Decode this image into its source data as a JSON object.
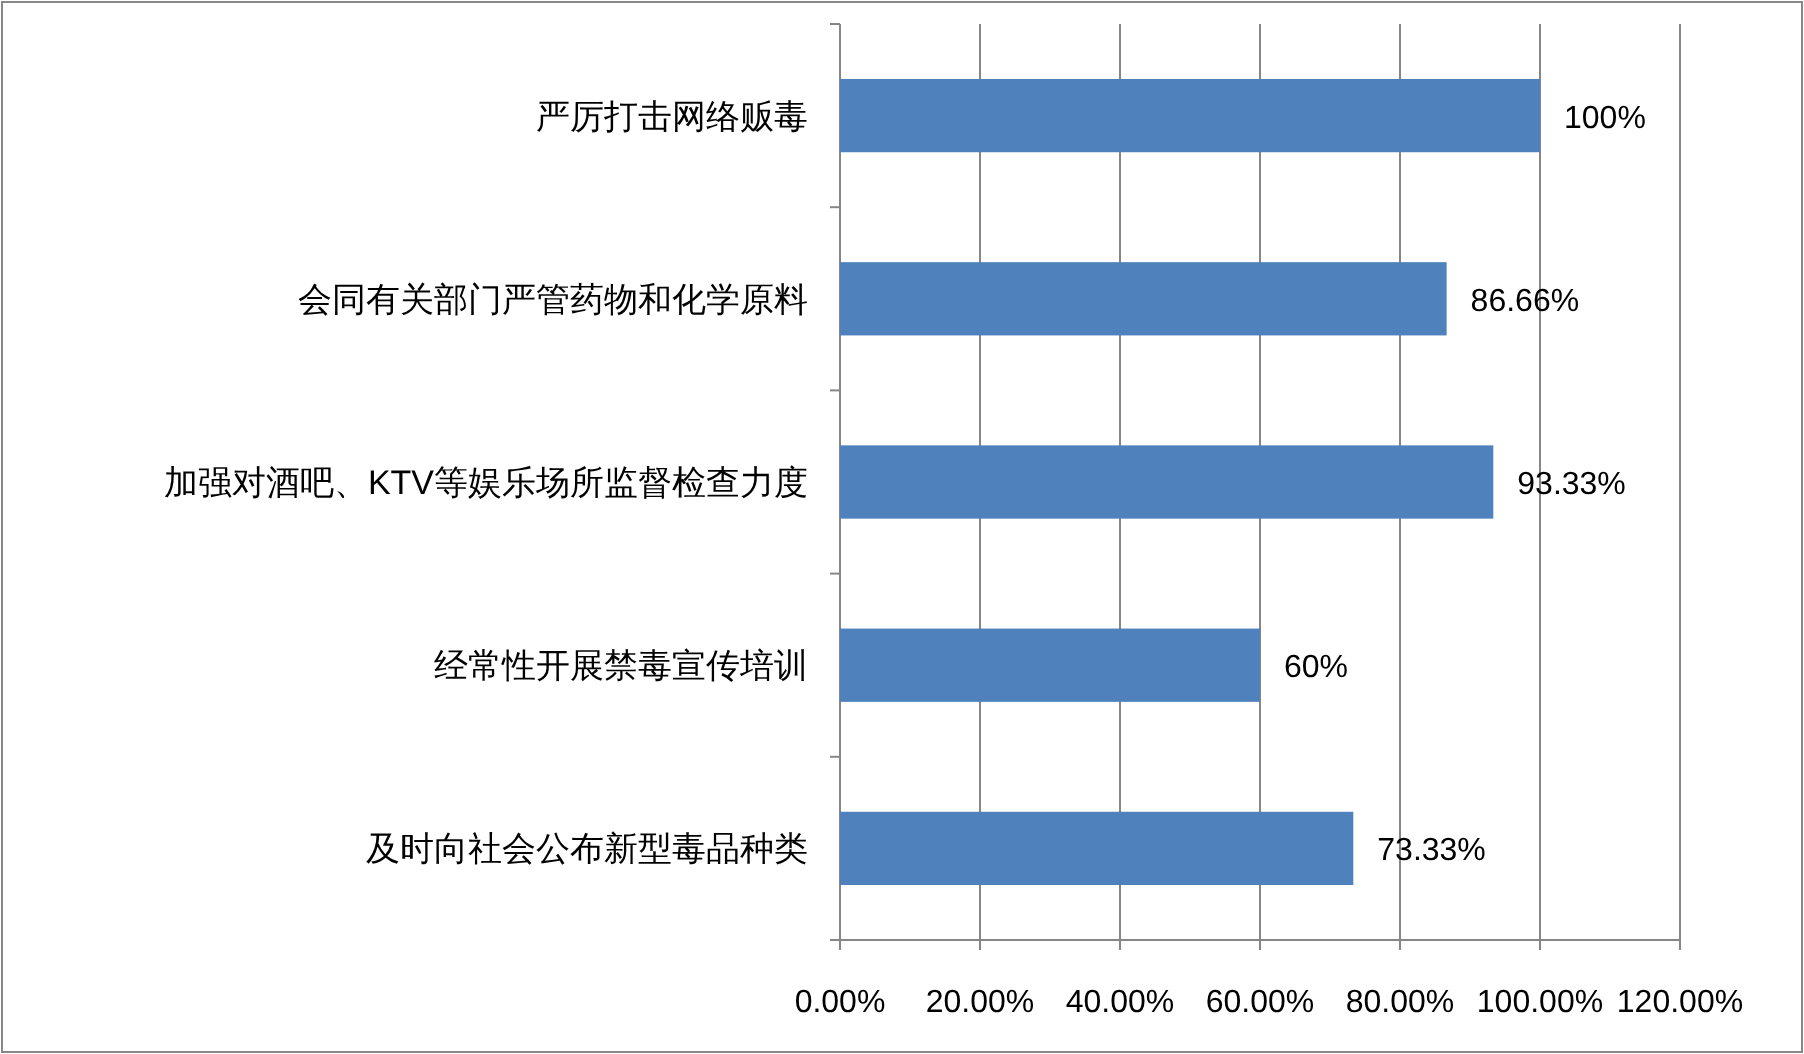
{
  "chart_data": {
    "type": "bar",
    "orientation": "horizontal",
    "categories": [
      "严厉打击网络贩毒",
      "会同有关部门严管药物和化学原料",
      "加强对酒吧、KTV等娱乐场所监督检查力度",
      "经常性开展禁毒宣传培训",
      "及时向社会公布新型毒品种类"
    ],
    "values": [
      100,
      86.66,
      93.33,
      60,
      73.33
    ],
    "value_labels": [
      "100%",
      "86.66%",
      "93.33%",
      "60%",
      "73.33%"
    ],
    "color": "#4f81bd",
    "xlim": [
      0,
      120
    ],
    "xticks": [
      {
        "value": 0,
        "label": "0.00%"
      },
      {
        "value": 20,
        "label": "20.00%"
      },
      {
        "value": 40,
        "label": "40.00%"
      },
      {
        "value": 60,
        "label": "60.00%"
      },
      {
        "value": 80,
        "label": "80.00%"
      },
      {
        "value": 100,
        "label": "100.00%"
      },
      {
        "value": 120,
        "label": "120.00%"
      }
    ],
    "grid": "x"
  }
}
